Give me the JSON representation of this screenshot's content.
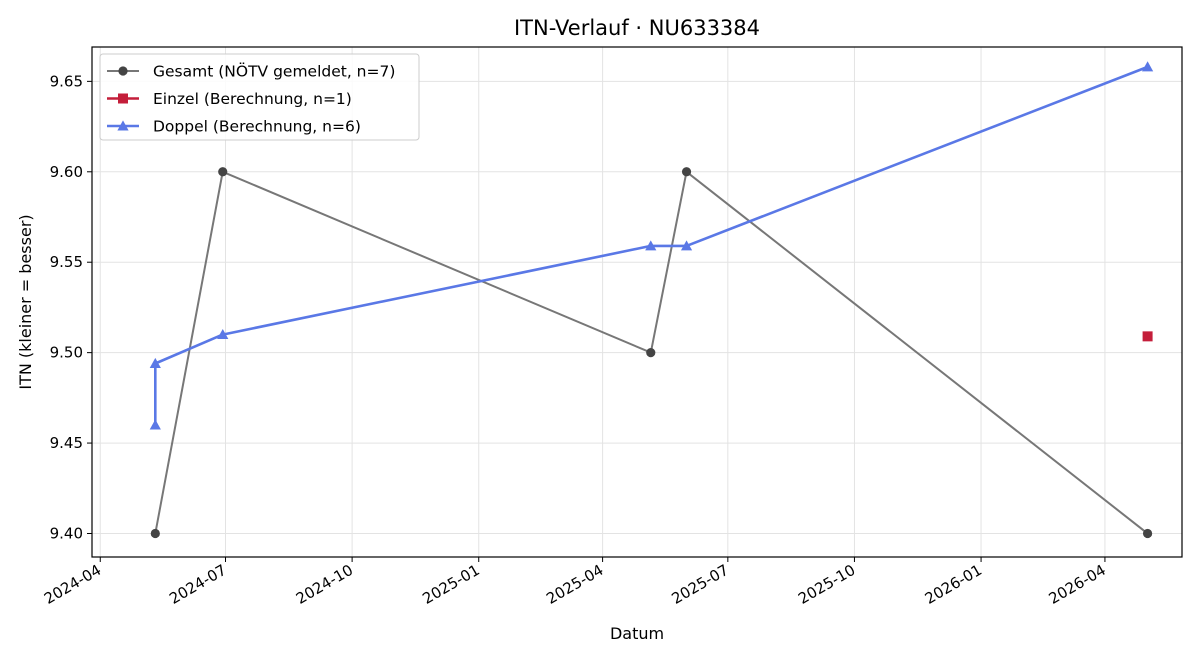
{
  "chart_data": {
    "type": "line",
    "title": "ITN-Verlauf · NU633384",
    "xlabel": "Datum",
    "ylabel": "ITN  (kleiner = besser)",
    "xlim": [
      "2024-03-26",
      "2026-05-27"
    ],
    "ylim": [
      9.387,
      9.669
    ],
    "x_ticks": [
      "2024-04",
      "2024-07",
      "2024-10",
      "2025-01",
      "2025-04",
      "2025-07",
      "2025-10",
      "2026-01",
      "2026-04"
    ],
    "y_ticks": [
      "9.40",
      "9.45",
      "9.50",
      "9.55",
      "9.60",
      "9.65"
    ],
    "grid": true,
    "legend_position": "upper-left",
    "series": [
      {
        "name": "Gesamt (NÖTV gemeldet, n=7)",
        "color": "#777777",
        "marker_color": "#444444",
        "marker": "circle",
        "points": [
          {
            "x": "2024-05-11",
            "y": 9.4
          },
          {
            "x": "2024-06-29",
            "y": 9.6
          },
          {
            "x": "2025-05-06",
            "y": 9.5
          },
          {
            "x": "2025-06-01",
            "y": 9.6
          },
          {
            "x": "2026-05-02",
            "y": 9.4
          }
        ]
      },
      {
        "name": "Einzel (Berechnung, n=1)",
        "color": "#c41e3a",
        "marker_color": "#c41e3a",
        "marker": "square",
        "points": [
          {
            "x": "2026-05-02",
            "y": 9.509
          }
        ]
      },
      {
        "name": "Doppel (Berechnung, n=6)",
        "color": "#5a78e6",
        "marker_color": "#5a78e6",
        "marker": "triangle",
        "points": [
          {
            "x": "2024-05-11",
            "y": 9.46
          },
          {
            "x": "2024-05-11",
            "y": 9.494
          },
          {
            "x": "2024-06-29",
            "y": 9.51
          },
          {
            "x": "2025-05-06",
            "y": 9.559
          },
          {
            "x": "2025-06-01",
            "y": 9.559
          },
          {
            "x": "2026-05-02",
            "y": 9.658
          }
        ]
      }
    ]
  }
}
